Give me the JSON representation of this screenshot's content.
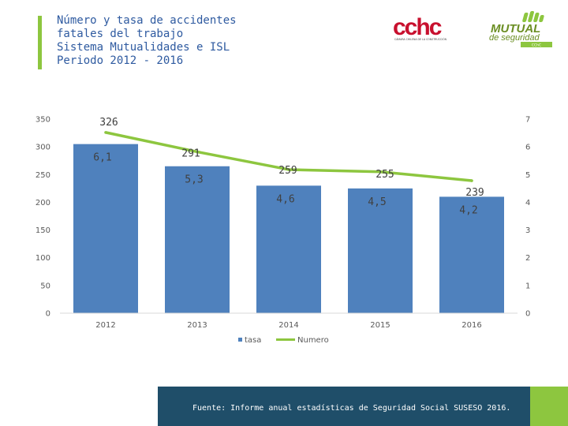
{
  "header": {
    "title_lines": [
      "Número y tasa de accidentes",
      "fatales del trabajo",
      "Sistema Mutualidades e ISL",
      "Periodo 2012 - 2016"
    ]
  },
  "logos": {
    "cchc": {
      "name": "cchc",
      "tagline": "CÁMARA CHILENA DE LA CONSTRUCCIÓN"
    },
    "mutual": {
      "line1": "MUTUAL",
      "line2": "de seguridad",
      "badge": "CChC"
    }
  },
  "chart_data": {
    "type": "bar+line",
    "categories": [
      "2012",
      "2013",
      "2014",
      "2015",
      "2016"
    ],
    "series": [
      {
        "name": "tasa",
        "kind": "bar",
        "axis": "right",
        "values": [
          6.1,
          5.3,
          4.6,
          4.5,
          4.2
        ],
        "labels": [
          "6,1",
          "5,3",
          "4,6",
          "4,5",
          "4,2"
        ],
        "color": "#4f81bd"
      },
      {
        "name": "Numero",
        "kind": "line",
        "axis": "left",
        "values": [
          326,
          291,
          259,
          255,
          239
        ],
        "labels": [
          "326",
          "291",
          "259",
          "255",
          "239"
        ],
        "color": "#8dc63f"
      }
    ],
    "y_left": {
      "min": 0,
      "max": 350,
      "ticks": [
        "0",
        "50",
        "100",
        "150",
        "200",
        "250",
        "300",
        "350"
      ]
    },
    "y_right": {
      "min": 0,
      "max": 7,
      "ticks": [
        "0",
        "1",
        "2",
        "3",
        "4",
        "5",
        "6",
        "7"
      ]
    },
    "legend": "bottom",
    "grid": false
  },
  "footer": {
    "source": "Fuente: Informe anual estadísticas de Seguridad Social SUSESO 2016."
  }
}
